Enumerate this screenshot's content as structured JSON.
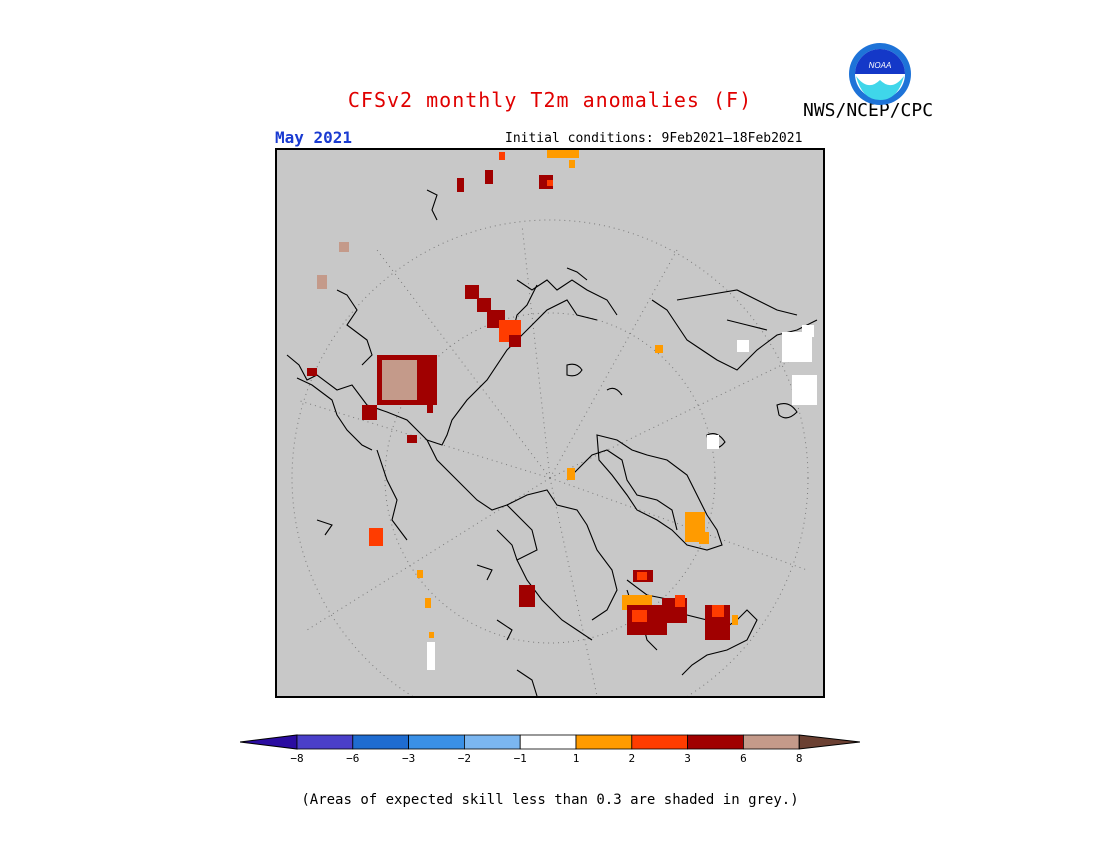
{
  "header": {
    "title": "CFSv2 monthly T2m anomalies (F)",
    "brand": "NWS/NCEP/CPC",
    "period": "May 2021",
    "initial_conditions": "Initial conditions: 9Feb2021–18Feb2021",
    "logo_text": "NOAA"
  },
  "legend": {
    "ticks": [
      "−8",
      "−6",
      "−3",
      "−2",
      "−1",
      "1",
      "2",
      "3",
      "6",
      "8"
    ],
    "colors": [
      "#2b0ca1",
      "#4a3fc9",
      "#1f6cd0",
      "#3a90e6",
      "#7bb6f0",
      "#ffffff",
      "#ff9b00",
      "#ff3c00",
      "#a00000",
      "#c49a8a",
      "#6b4032"
    ]
  },
  "footnote": "(Areas of expected skill less than 0.3 are shaded in grey.)",
  "map": {
    "projection": "polar stereographic",
    "background_color": "#c8c8c8"
  }
}
